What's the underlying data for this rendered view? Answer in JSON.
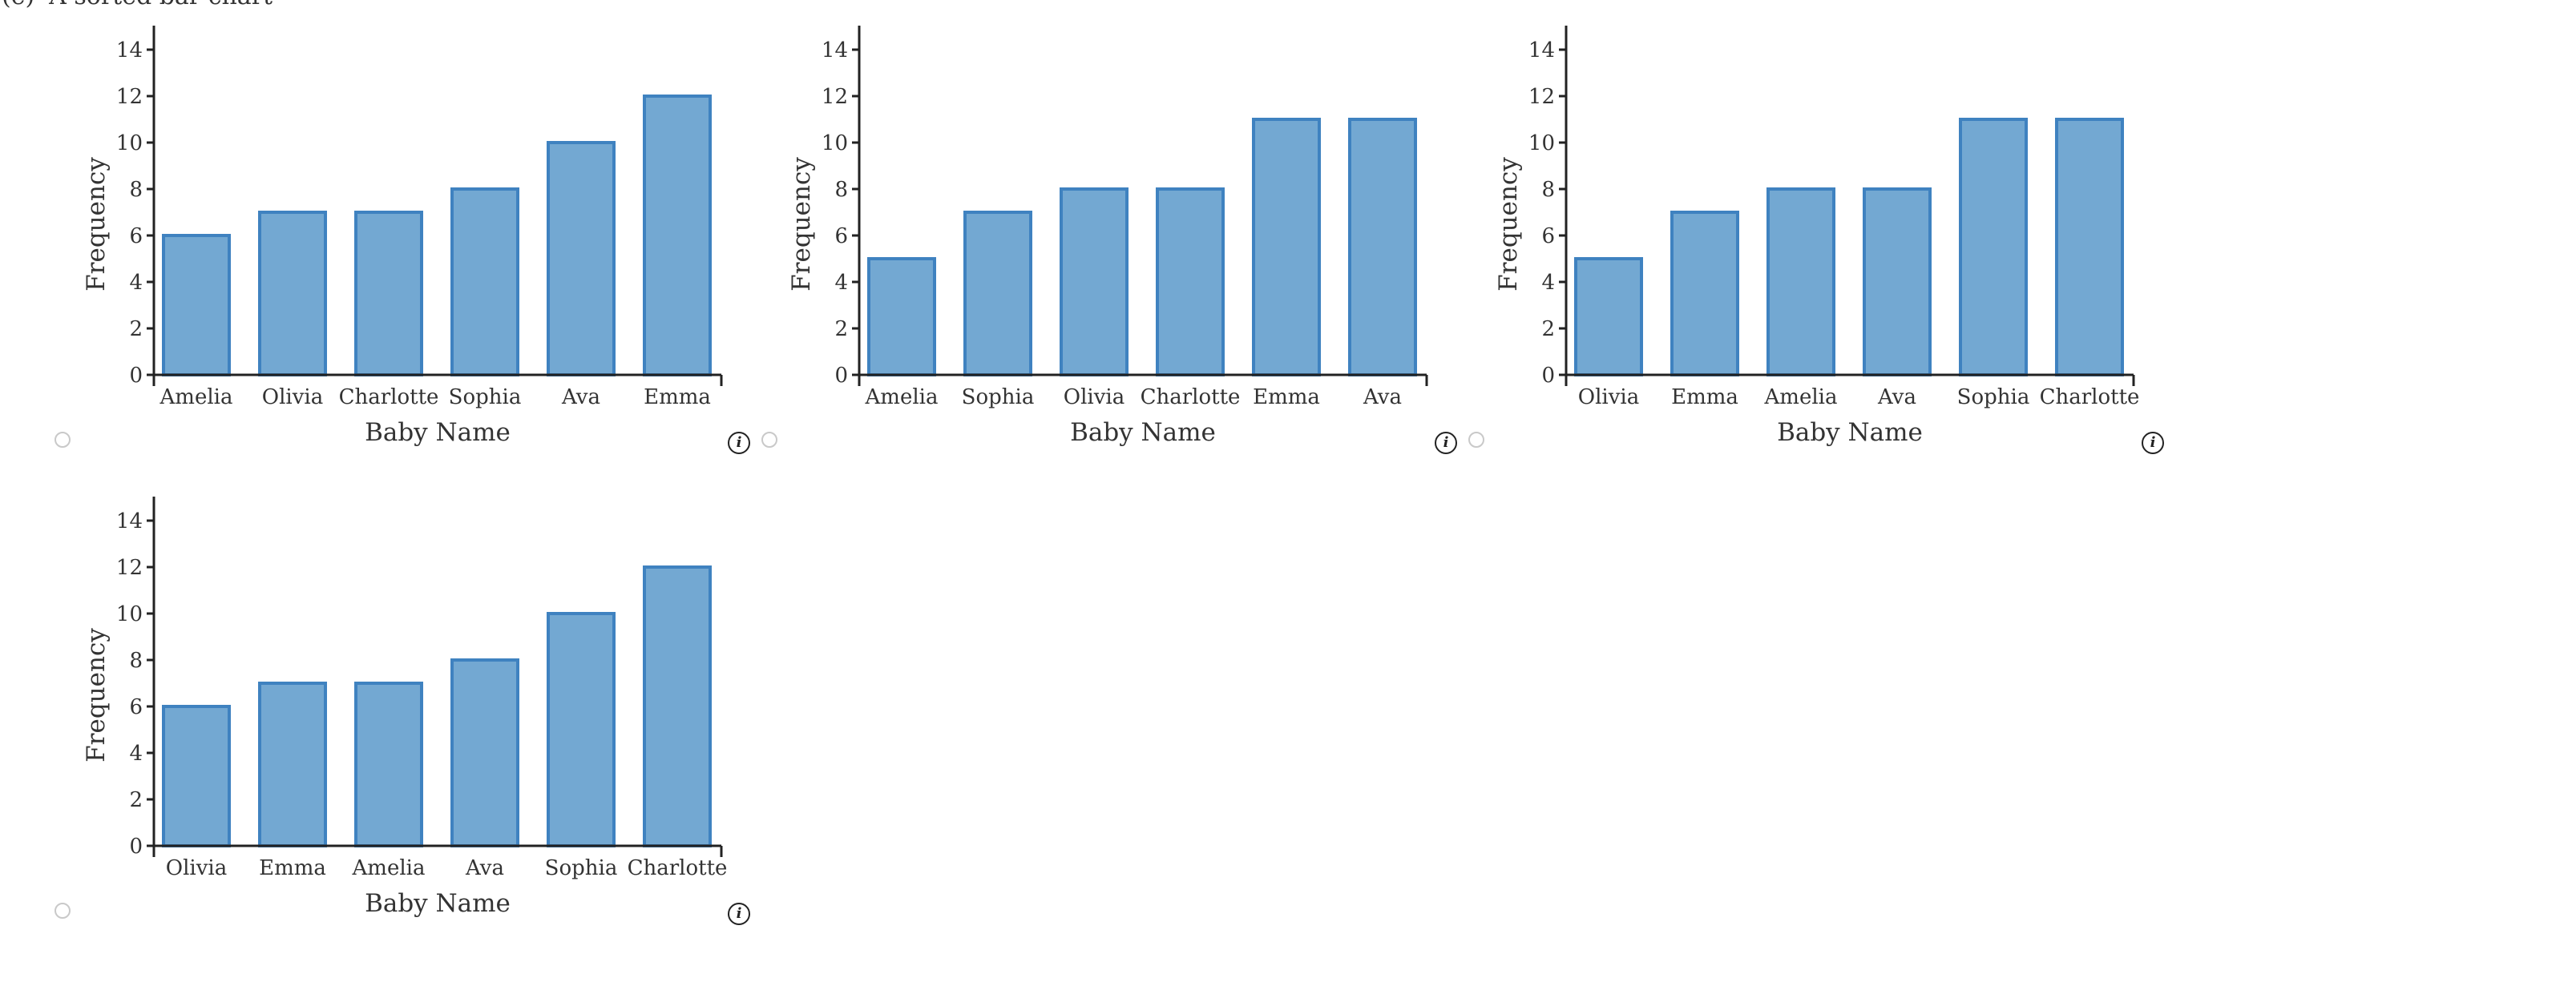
{
  "question": {
    "label": "(e)",
    "text": "A sorted bar chart"
  },
  "info_symbol": "i",
  "colors": {
    "bar_fill": "#73a8d2",
    "bar_stroke": "#3f82c0",
    "axis": "#222222"
  },
  "chart_data": [
    {
      "type": "bar",
      "categories": [
        "Amelia",
        "Olivia",
        "Charlotte",
        "Sophia",
        "Ava",
        "Emma"
      ],
      "values": [
        6,
        7,
        7,
        8,
        10,
        12
      ],
      "xlabel": "Baby Name",
      "ylabel": "Frequency",
      "ylim": [
        0,
        15
      ],
      "yticks": [
        0,
        2,
        4,
        6,
        8,
        10,
        12,
        14
      ],
      "grid": false
    },
    {
      "type": "bar",
      "categories": [
        "Amelia",
        "Sophia",
        "Olivia",
        "Charlotte",
        "Emma",
        "Ava"
      ],
      "values": [
        5,
        7,
        8,
        8,
        11,
        11
      ],
      "xlabel": "Baby Name",
      "ylabel": "Frequency",
      "ylim": [
        0,
        15
      ],
      "yticks": [
        0,
        2,
        4,
        6,
        8,
        10,
        12,
        14
      ],
      "grid": false
    },
    {
      "type": "bar",
      "categories": [
        "Olivia",
        "Emma",
        "Amelia",
        "Ava",
        "Sophia",
        "Charlotte"
      ],
      "values": [
        5,
        7,
        8,
        8,
        11,
        11
      ],
      "xlabel": "Baby Name",
      "ylabel": "Frequency",
      "ylim": [
        0,
        15
      ],
      "yticks": [
        0,
        2,
        4,
        6,
        8,
        10,
        12,
        14
      ],
      "grid": false
    },
    {
      "type": "bar",
      "categories": [
        "Olivia",
        "Emma",
        "Amelia",
        "Ava",
        "Sophia",
        "Charlotte"
      ],
      "values": [
        6,
        7,
        7,
        8,
        10,
        12
      ],
      "xlabel": "Baby Name",
      "ylabel": "Frequency",
      "ylim": [
        0,
        15
      ],
      "yticks": [
        0,
        2,
        4,
        6,
        8,
        10,
        12,
        14
      ],
      "grid": false
    }
  ]
}
